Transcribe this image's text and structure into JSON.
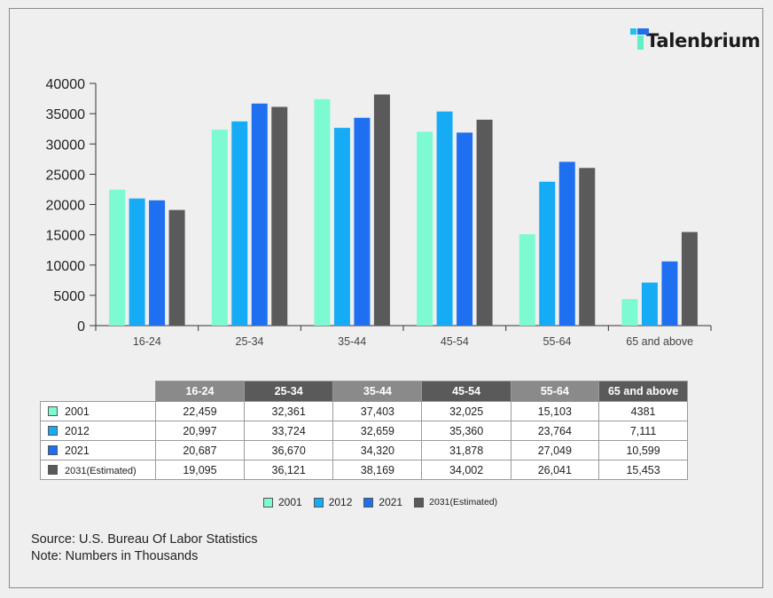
{
  "brand": {
    "name": "Talenbrium"
  },
  "chart_data": {
    "type": "bar",
    "categories": [
      "16-24",
      "25-34",
      "35-44",
      "45-54",
      "55-64",
      "65 and above"
    ],
    "series": [
      {
        "name": "2001",
        "color": "#7dfad2",
        "values": [
          22459,
          32361,
          37403,
          32025,
          15103,
          4381
        ],
        "labels": [
          "22,459",
          "32,361",
          "37,403",
          "32,025",
          "15,103",
          "4381"
        ]
      },
      {
        "name": "2012",
        "color": "#16acf5",
        "values": [
          20997,
          33724,
          32659,
          35360,
          23764,
          7111
        ],
        "labels": [
          "20,997",
          "33,724",
          "32,659",
          "35,360",
          "23,764",
          "7,111"
        ]
      },
      {
        "name": "2021",
        "color": "#1f70f0",
        "values": [
          20687,
          36670,
          34320,
          31878,
          27049,
          10599
        ],
        "labels": [
          "20,687",
          "36,670",
          "34,320",
          "31,878",
          "27,049",
          "10,599"
        ]
      },
      {
        "name": "2031(Estimated)",
        "color": "#5a5a5a",
        "values": [
          19095,
          36121,
          38169,
          34002,
          26041,
          15453
        ],
        "labels": [
          "19,095",
          "36,121",
          "38,169",
          "34,002",
          "26,041",
          "15,453"
        ]
      }
    ],
    "ylim": [
      0,
      40000
    ],
    "yticks": [
      "0",
      "5000",
      "10000",
      "15000",
      "20000",
      "25000",
      "30000",
      "35000",
      "40000"
    ],
    "grid": false,
    "legend": "bottom-center",
    "header_colors": [
      "#8a8a8a",
      "#5a5a5a"
    ]
  },
  "notes": {
    "source": "Source: U.S. Bureau Of Labor Statistics",
    "note": "Note: Numbers in Thousands"
  }
}
